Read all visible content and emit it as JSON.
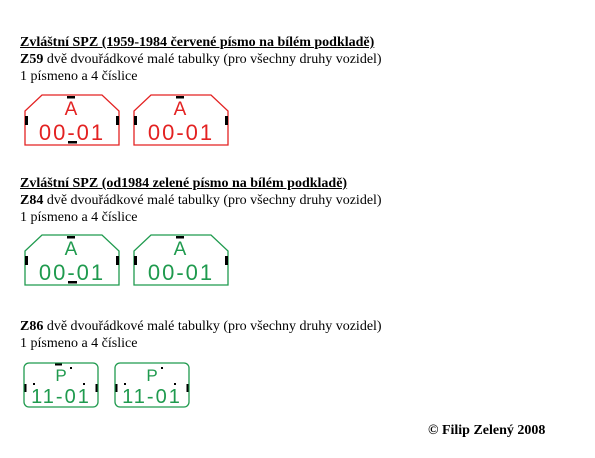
{
  "section1": {
    "title": "Zvláštní SPZ  (1959-1984 červené písmo na bílém podkladě)",
    "code": "Z59",
    "description": " dvě dvouřádkové malé tabulky  (pro všechny druhy vozidel)",
    "format": "1 písmeno a 4 číslice",
    "color": "#e32222",
    "plates": [
      {
        "letter": "A",
        "number": "00-01"
      },
      {
        "letter": "A",
        "number": "00-01"
      }
    ]
  },
  "section2": {
    "title": "Zvláštní SPZ  (od1984 zelené písmo na bílém podkladě)",
    "code": "Z84",
    "description": " dvě dvouřádkové malé tabulky  (pro všechny druhy vozidel)",
    "format": "1 písmeno a 4 číslice",
    "color": "#1f9a4e",
    "plates": [
      {
        "letter": "A",
        "number": "00-01"
      },
      {
        "letter": "A",
        "number": "00-01"
      }
    ]
  },
  "section3": {
    "code": "Z86",
    "description": " dvě dvouřádkové malé tabulky  (pro všechny druhy vozidel)",
    "format": "1 písmeno a 4 číslice",
    "color": "#1f9a4e",
    "plates": [
      {
        "letter": "P",
        "number": "11-01"
      },
      {
        "letter": "P",
        "number": "11-01"
      }
    ]
  },
  "footer": {
    "copyright": "© Filip Zelený 2008"
  }
}
